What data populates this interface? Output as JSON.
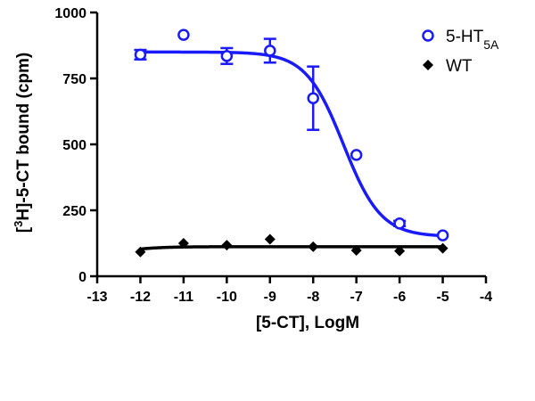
{
  "chart_data": {
    "type": "scatter",
    "xlabel": "[5-CT], LogM",
    "ylabel_parts": {
      "pre": "[",
      "sup": "3",
      "post": "H]-5-CT bound (cpm)"
    },
    "xlim": [
      -13,
      -4
    ],
    "ylim": [
      0,
      1000
    ],
    "xticks": [
      -13,
      -12,
      -11,
      -10,
      -9,
      -8,
      -7,
      -6,
      -5,
      -4
    ],
    "yticks": [
      0,
      250,
      500,
      750,
      1000
    ],
    "grid": false,
    "legend_position": "top-right",
    "series": [
      {
        "name": "5-HT5A",
        "legend_base": "5-HT",
        "legend_sub": "5A",
        "marker": "open-circle",
        "color": "#1a1aff",
        "x": [
          -12,
          -11,
          -10,
          -9,
          -8,
          -7,
          -6,
          -5
        ],
        "y": [
          840,
          915,
          835,
          855,
          675,
          460,
          200,
          155
        ],
        "error": [
          18,
          0,
          30,
          45,
          120,
          0,
          10,
          0
        ],
        "fit": {
          "model": "sigmoid",
          "top": 850,
          "bottom": 150,
          "logEC50": -7.3,
          "hill": 1.0
        }
      },
      {
        "name": "WT",
        "legend_base": "WT",
        "legend_sub": "",
        "marker": "filled-diamond",
        "color": "#000000",
        "x": [
          -12,
          -11,
          -10,
          -9,
          -8,
          -7,
          -6,
          -5
        ],
        "y": [
          92,
          125,
          118,
          140,
          112,
          98,
          96,
          106
        ],
        "error": [
          0,
          0,
          0,
          0,
          0,
          0,
          0,
          0
        ],
        "fit": {
          "model": "sigmoid",
          "top": 75,
          "bottom": 112,
          "logEC50": -12.5,
          "hill": 1.0
        }
      }
    ]
  }
}
